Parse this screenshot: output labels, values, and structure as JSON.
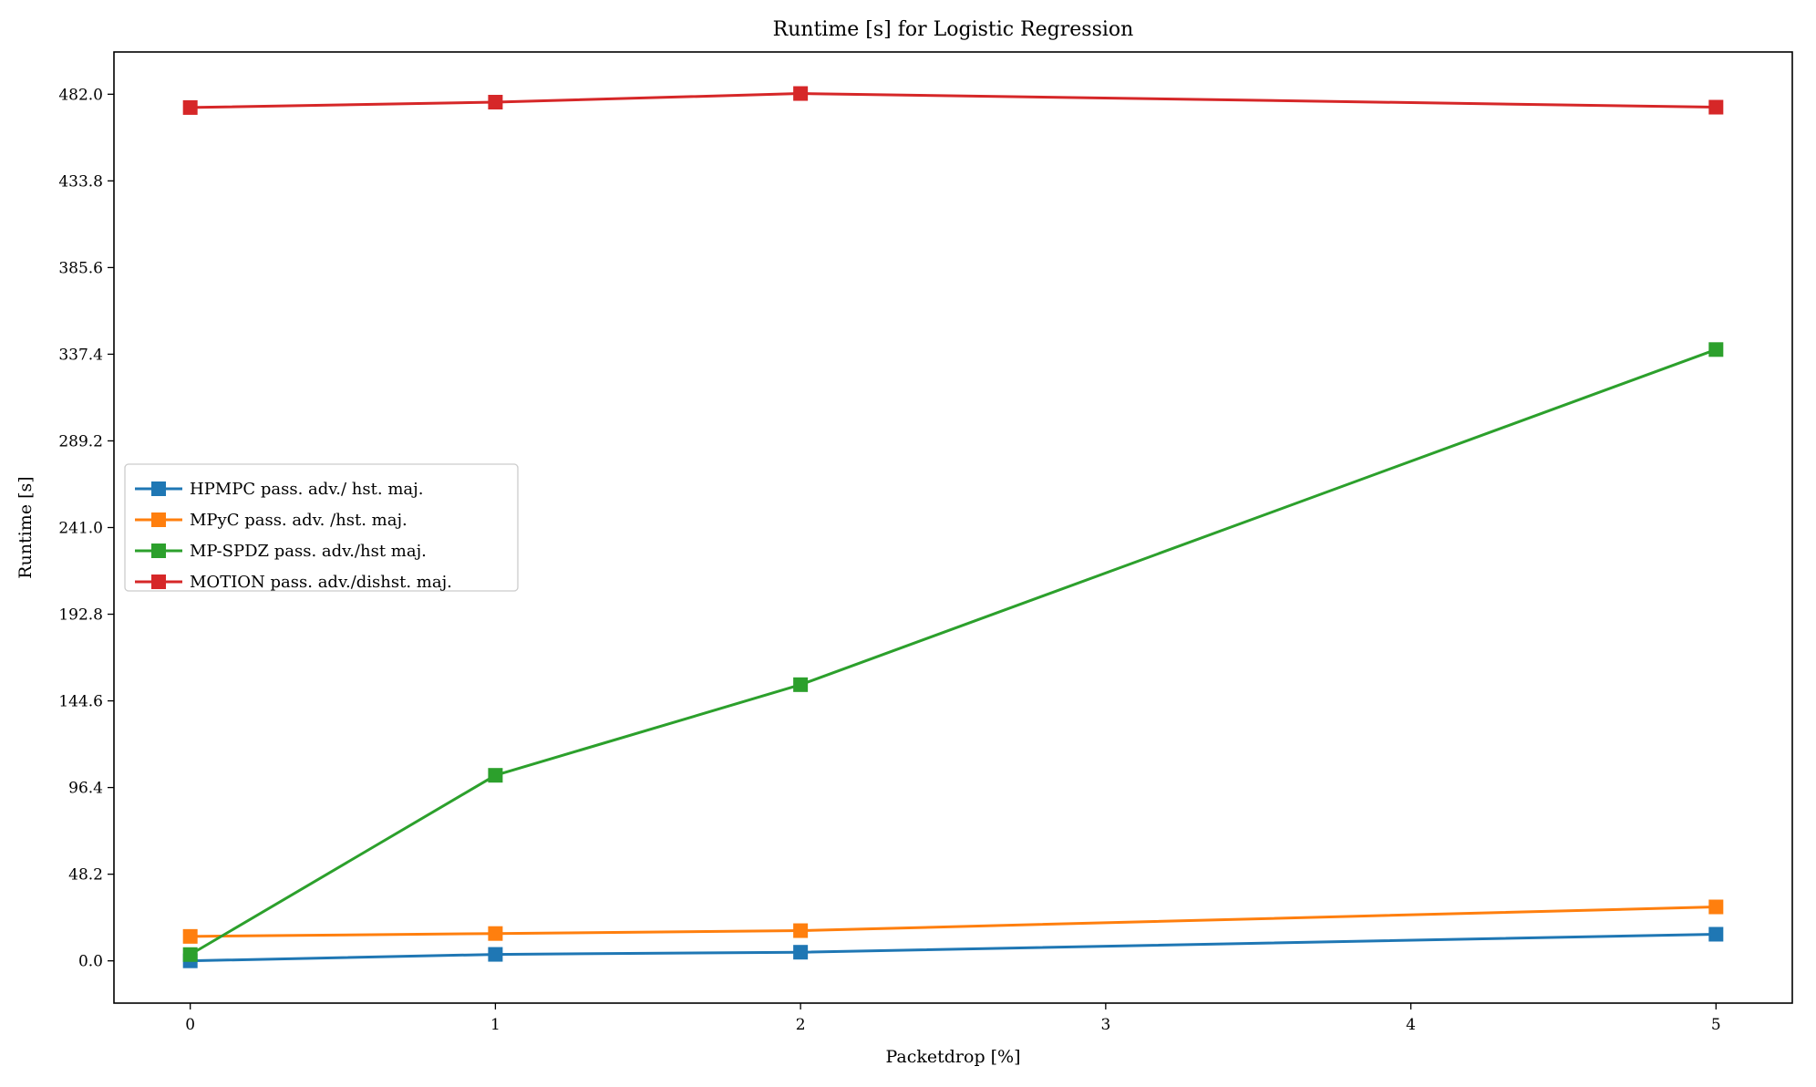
{
  "chart_data": {
    "type": "line",
    "title": "Runtime [s] for Logistic Regression",
    "xlabel": "Packetdrop [%]",
    "ylabel": "Runtime [s]",
    "xlim": [
      -0.25,
      5.25
    ],
    "ylim": [
      -23.5,
      505.5
    ],
    "xticks": [
      0,
      1,
      2,
      3,
      4,
      5
    ],
    "xtick_labels": [
      "0",
      "1",
      "2",
      "3",
      "4",
      "5"
    ],
    "yticks": [
      0.0,
      48.2,
      96.4,
      144.6,
      192.8,
      241.0,
      289.2,
      337.4,
      385.6,
      433.8,
      482.0
    ],
    "ytick_labels": [
      "0.0",
      "48.2",
      "96.4",
      "144.6",
      "192.8",
      "241.0",
      "289.2",
      "337.4",
      "385.6",
      "433.8",
      "482.0"
    ],
    "grid": false,
    "legend_position": "center-left",
    "marker": "square",
    "series": [
      {
        "name": "HPMPC pass. adv./ hst. maj.",
        "color": "#1f77b4",
        "x": [
          0,
          1,
          2,
          5
        ],
        "y": [
          0.0,
          3.6,
          4.8,
          14.8
        ]
      },
      {
        "name": "MPyC pass. adv. /hst. maj.",
        "color": "#ff7f0e",
        "x": [
          0,
          1,
          2,
          5
        ],
        "y": [
          13.6,
          15.2,
          16.8,
          30.0
        ]
      },
      {
        "name": "MP-SPDZ pass. adv./hst maj.",
        "color": "#2ca02c",
        "x": [
          0,
          1,
          2,
          5
        ],
        "y": [
          3.5,
          103.2,
          153.6,
          340.0
        ]
      },
      {
        "name": "MOTION pass. adv./dishst. maj.",
        "color": "#d62728",
        "x": [
          0,
          1,
          2,
          5
        ],
        "y": [
          474.6,
          477.6,
          482.4,
          474.8
        ]
      }
    ]
  }
}
